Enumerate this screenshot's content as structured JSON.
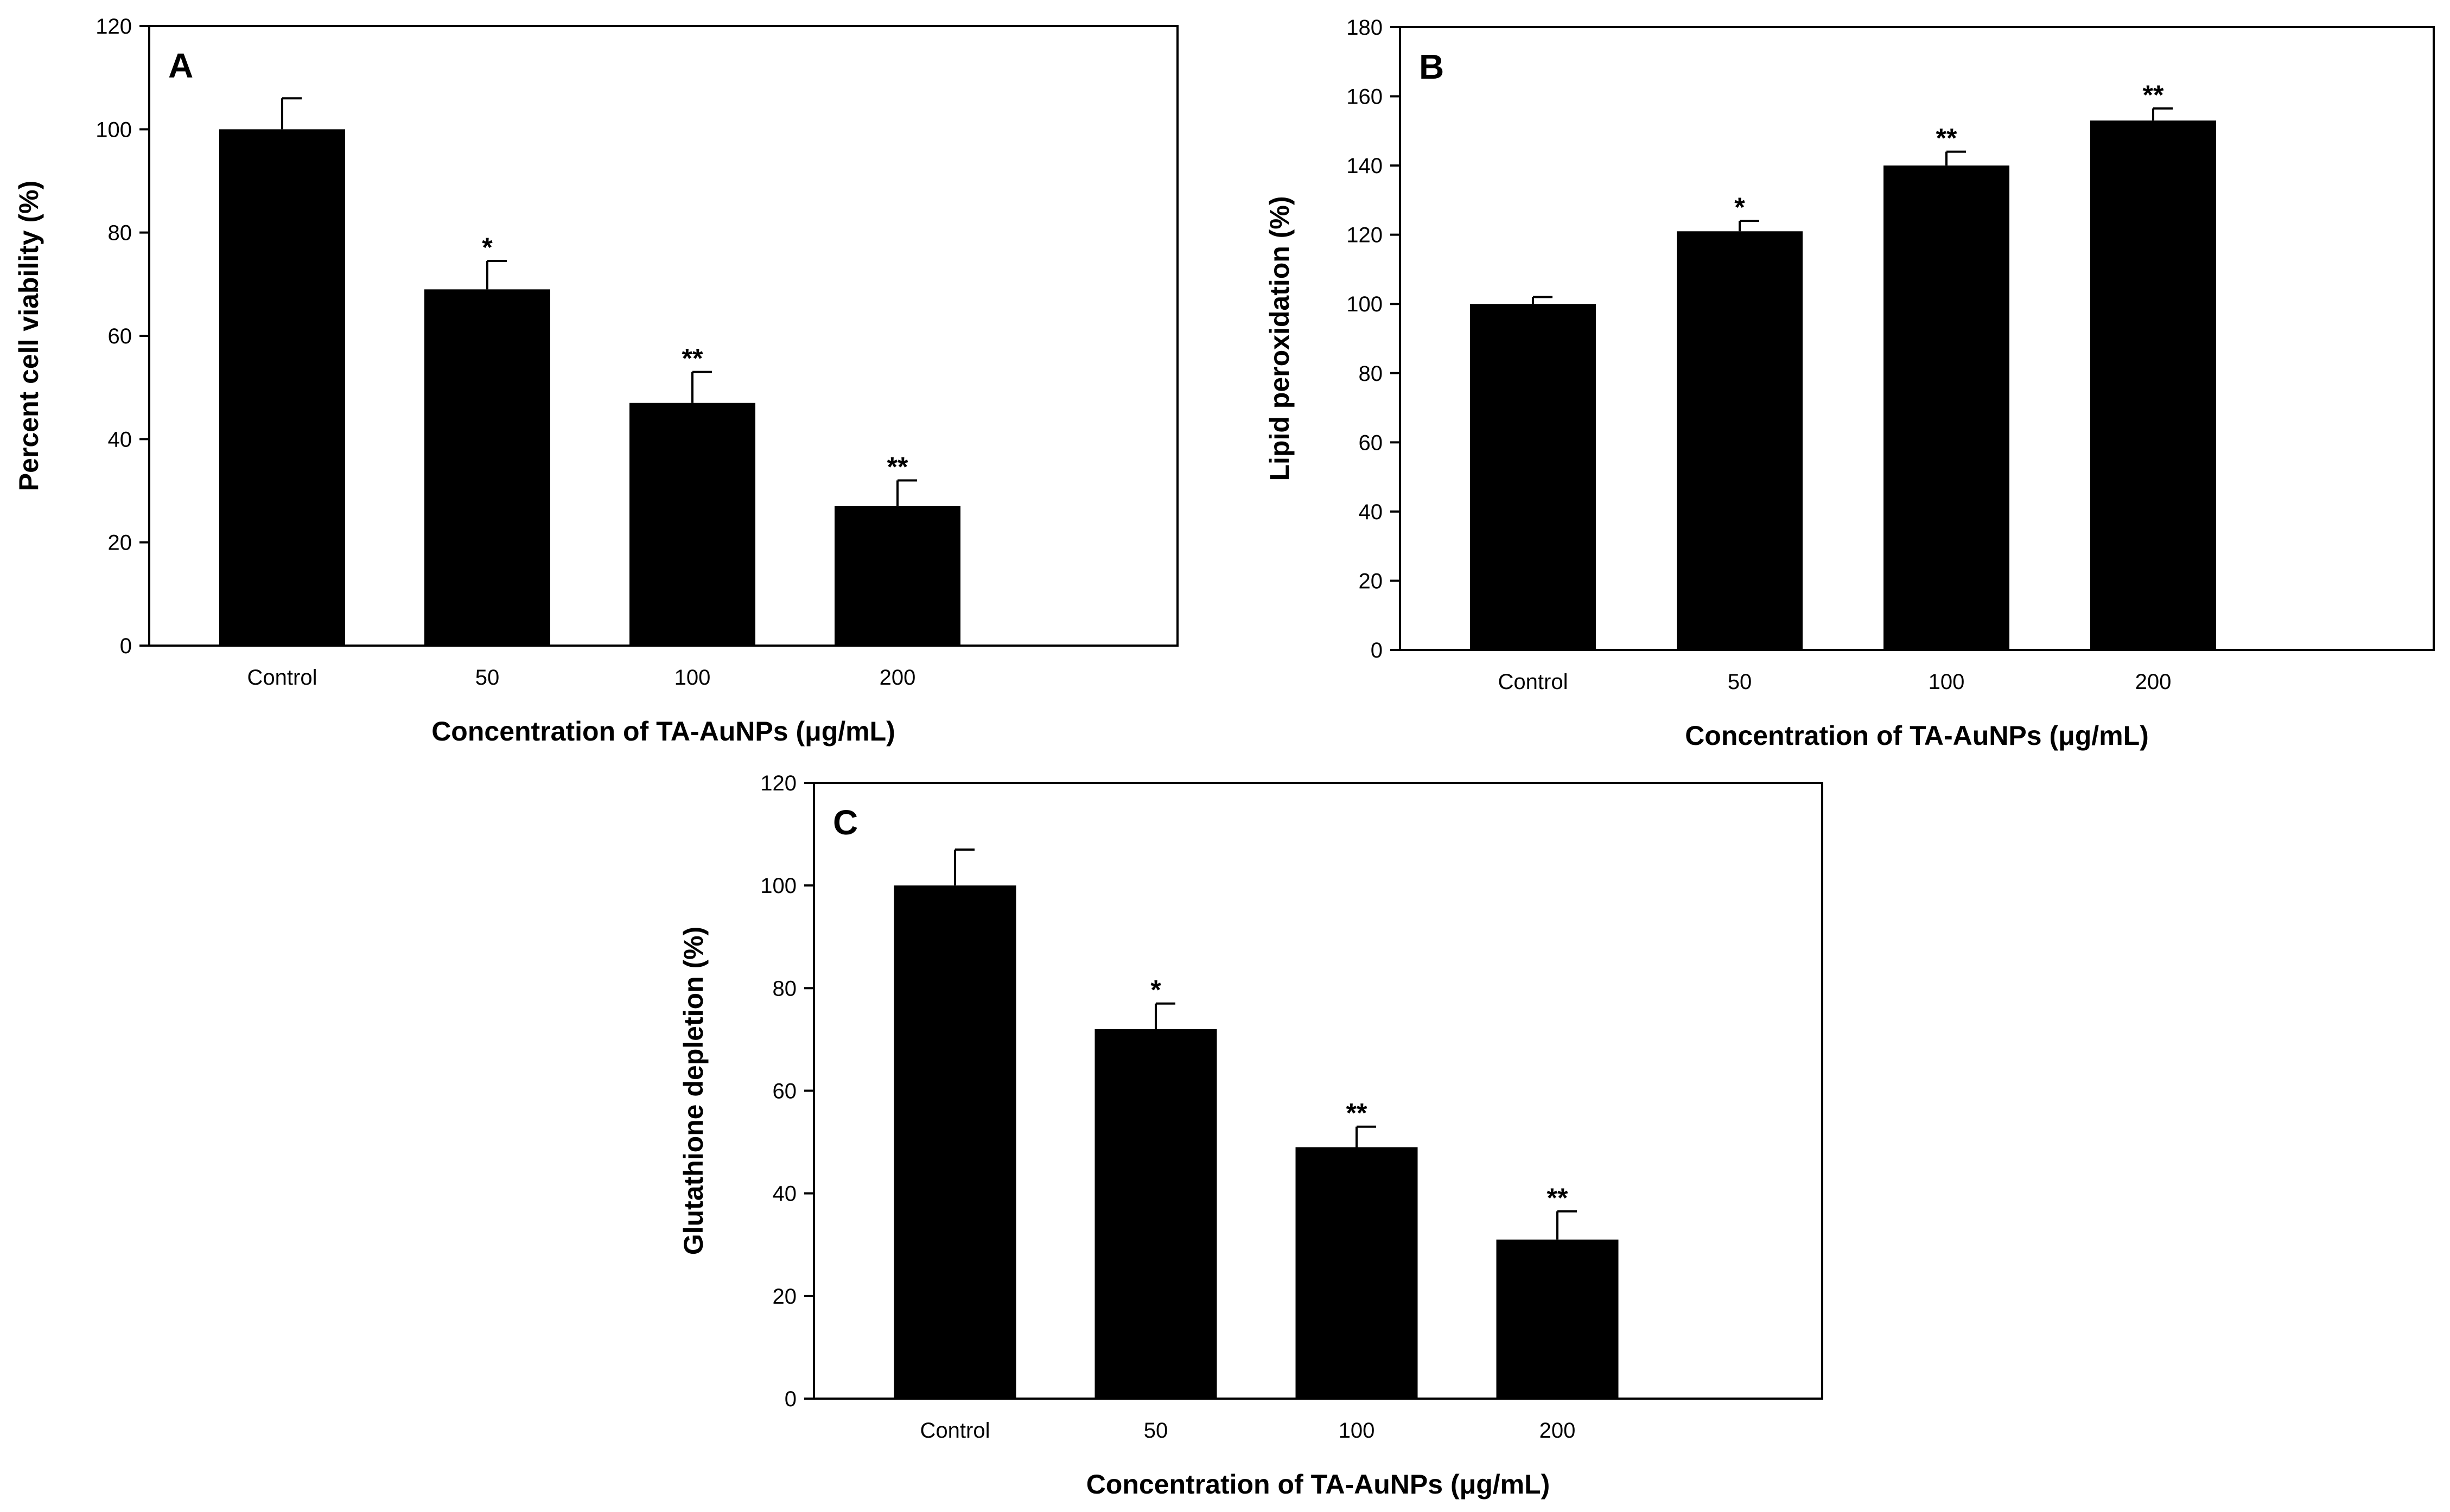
{
  "chart_data": [
    {
      "panel": "A",
      "type": "bar",
      "categories": [
        "Control",
        "50",
        "100",
        "200"
      ],
      "values": [
        100,
        69,
        47,
        27
      ],
      "errors": [
        6,
        5.5,
        6,
        5
      ],
      "significance": [
        "",
        "*",
        "**",
        "**"
      ],
      "xlabel": "Concentration of TA-AuNPs (μg/mL)",
      "ylabel": "Percent cell viability (%)",
      "ylim": [
        0,
        120
      ],
      "yticks": [
        0,
        20,
        40,
        60,
        80,
        100,
        120
      ],
      "grid": false
    },
    {
      "panel": "B",
      "type": "bar",
      "categories": [
        "Control",
        "50",
        "100",
        "200"
      ],
      "values": [
        100,
        121,
        140,
        153
      ],
      "errors": [
        2,
        3,
        4,
        3.5
      ],
      "significance": [
        "",
        "*",
        "**",
        "**"
      ],
      "xlabel": "Concentration of TA-AuNPs (μg/mL)",
      "ylabel": "Lipid peroxidation (%)",
      "ylim": [
        0,
        180
      ],
      "yticks": [
        0,
        20,
        40,
        60,
        80,
        100,
        120,
        140,
        160,
        180
      ],
      "grid": false
    },
    {
      "panel": "C",
      "type": "bar",
      "categories": [
        "Control",
        "50",
        "100",
        "200"
      ],
      "values": [
        100,
        72,
        49,
        31
      ],
      "errors": [
        7,
        5,
        4,
        5.5
      ],
      "significance": [
        "",
        "*",
        "**",
        "**"
      ],
      "xlabel": "Concentration of TA-AuNPs (μg/mL)",
      "ylabel": "Glutathione depletion (%)",
      "ylim": [
        0,
        120
      ],
      "yticks": [
        0,
        20,
        40,
        60,
        80,
        100,
        120
      ],
      "grid": false
    }
  ],
  "colors": {
    "bar": "#000000",
    "axis": "#000000",
    "background": "#ffffff"
  }
}
